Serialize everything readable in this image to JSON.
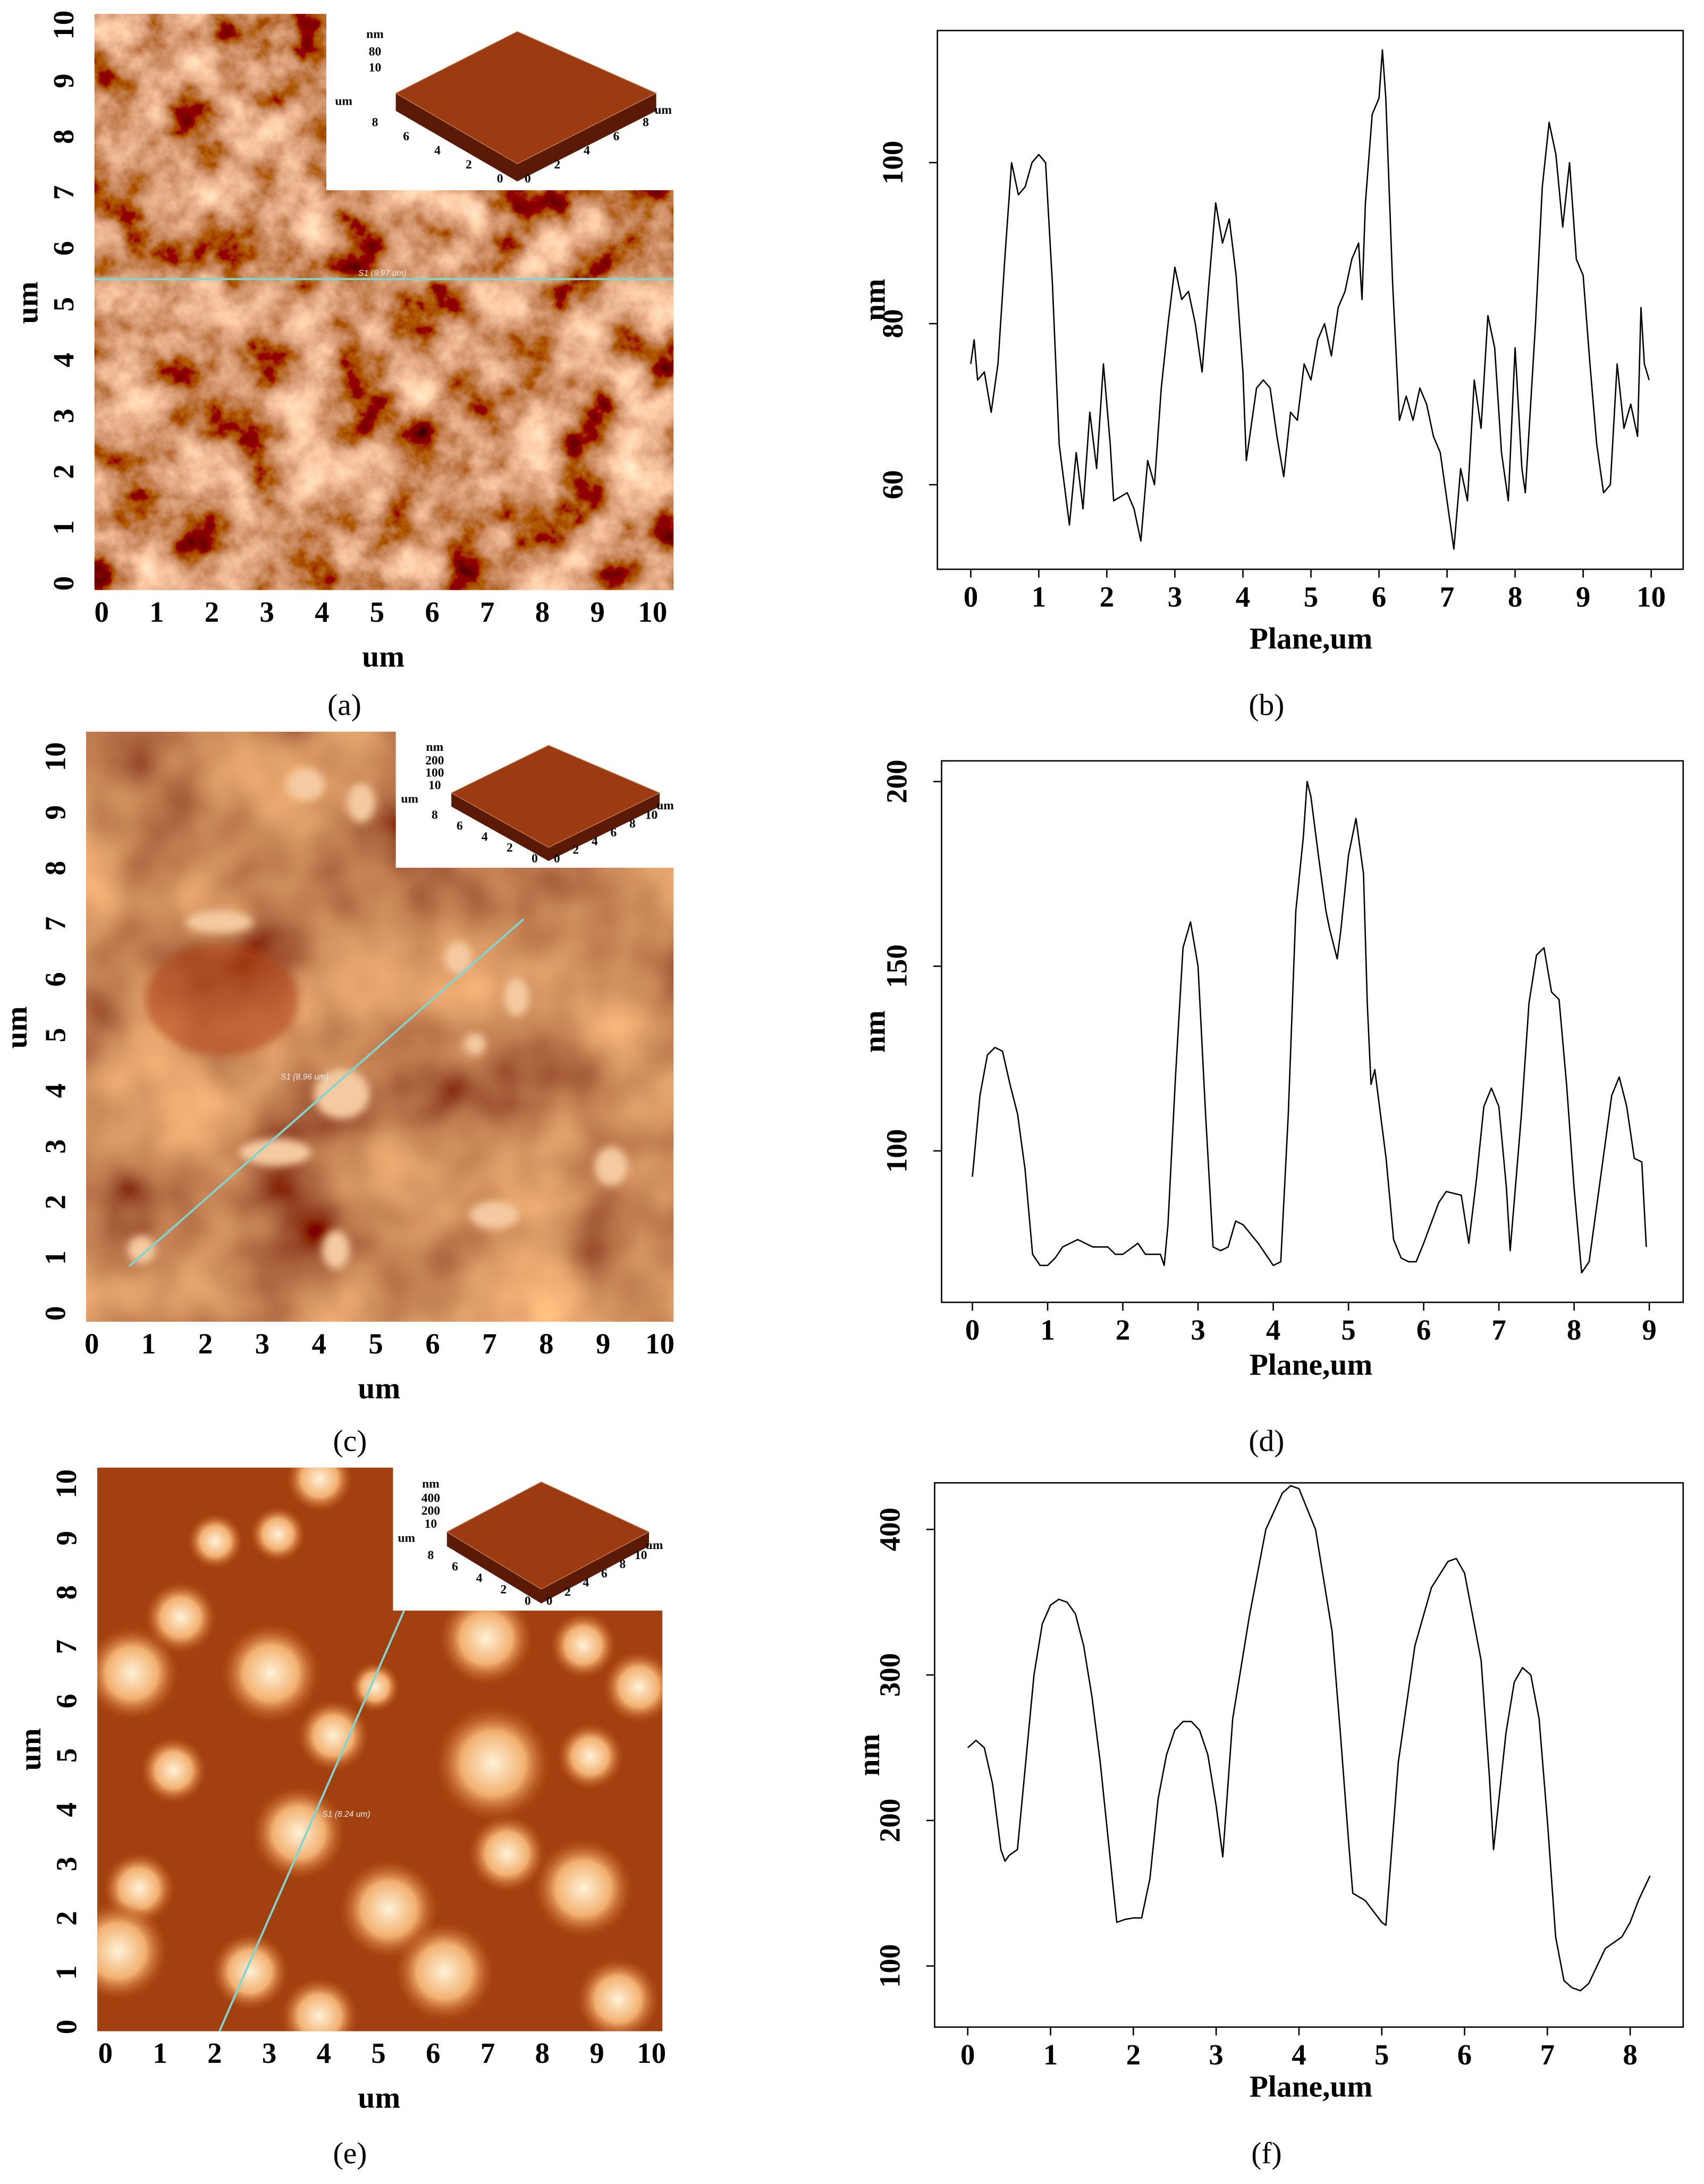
{
  "chart_data": [
    {
      "type": "image",
      "xlabel": "um",
      "ylabel": "um",
      "xlim": [
        -0.13,
        10.38
      ],
      "ylim": [
        -0.12,
        10.2
      ],
      "xticks": [
        0,
        1,
        2,
        3,
        4,
        5,
        6,
        7,
        8,
        9,
        10
      ],
      "yticks": [
        0,
        1,
        2,
        3,
        4,
        5,
        6,
        7,
        8,
        9,
        10
      ],
      "scan_label": "S1 (9.97 um)",
      "inset": {
        "zlabel": "nm",
        "zticks": [
          80,
          10
        ],
        "left_label": "um",
        "left_ticks": [
          8,
          6,
          4,
          2,
          0
        ],
        "right_ticks": [
          0,
          2,
          4,
          6,
          8
        ],
        "right_label": "um"
      },
      "caption": "(a)"
    },
    {
      "type": "line",
      "xlabel": "Plane,um",
      "ylabel": "nm",
      "xlim": [
        -0.49,
        10.47
      ],
      "ylim": [
        49.5,
        116.4
      ],
      "xticks": [
        0,
        1,
        2,
        3,
        4,
        5,
        6,
        7,
        8,
        9,
        10
      ],
      "yticks": [
        60,
        80,
        100
      ],
      "color": "#000000",
      "x": [
        0,
        0.05,
        0.1,
        0.2,
        0.3,
        0.4,
        0.5,
        0.6,
        0.7,
        0.8,
        0.9,
        1.0,
        1.1,
        1.2,
        1.3,
        1.45,
        1.55,
        1.65,
        1.75,
        1.85,
        1.95,
        2.05,
        2.1,
        2.3,
        2.4,
        2.5,
        2.6,
        2.7,
        2.8,
        2.9,
        3.0,
        3.1,
        3.2,
        3.3,
        3.4,
        3.5,
        3.6,
        3.7,
        3.8,
        3.9,
        4.0,
        4.05,
        4.2,
        4.3,
        4.4,
        4.5,
        4.6,
        4.7,
        4.8,
        4.9,
        5.0,
        5.1,
        5.2,
        5.3,
        5.4,
        5.5,
        5.6,
        5.7,
        5.75,
        5.8,
        5.9,
        6.0,
        6.05,
        6.1,
        6.2,
        6.3,
        6.4,
        6.5,
        6.6,
        6.7,
        6.8,
        6.9,
        7.0,
        7.1,
        7.2,
        7.3,
        7.4,
        7.5,
        7.6,
        7.7,
        7.8,
        7.9,
        8.0,
        8.1,
        8.15,
        8.3,
        8.4,
        8.5,
        8.6,
        8.7,
        8.8,
        8.9,
        9.0,
        9.1,
        9.2,
        9.3,
        9.4,
        9.5,
        9.6,
        9.7,
        9.8,
        9.85,
        9.9,
        9.97
      ],
      "values": [
        75,
        78,
        73,
        74,
        69,
        75,
        88,
        100,
        96,
        97,
        100,
        101,
        100,
        85,
        65,
        55,
        64,
        57,
        69,
        62,
        75,
        65,
        58,
        59,
        57,
        53,
        63,
        60,
        72,
        80,
        87,
        83,
        84,
        80,
        74,
        85,
        95,
        90,
        93,
        86,
        74,
        63,
        72,
        73,
        72,
        66,
        61,
        69,
        68,
        75,
        73,
        78,
        80,
        76,
        82,
        84,
        88,
        90,
        83,
        95,
        106,
        108,
        114,
        108,
        85,
        68,
        71,
        68,
        72,
        70,
        66,
        64,
        58,
        52,
        62,
        58,
        73,
        67,
        81,
        77,
        64,
        58,
        77,
        62,
        59,
        80,
        97,
        105,
        101,
        92,
        100,
        88,
        86,
        75,
        65,
        59,
        60,
        75,
        67,
        70,
        66,
        82,
        75,
        73
      ],
      "caption": "(b)"
    },
    {
      "type": "image",
      "xlabel": "um",
      "ylabel": "um",
      "xlim": [
        -0.1,
        10.24
      ],
      "ylim": [
        -0.15,
        10.45
      ],
      "xticks": [
        0,
        1,
        2,
        3,
        4,
        5,
        6,
        7,
        8,
        9,
        10
      ],
      "yticks": [
        0,
        1,
        2,
        3,
        4,
        5,
        6,
        7,
        8,
        9,
        10
      ],
      "scan_label": "S1 (8.96 um)",
      "inset": {
        "zlabel": "nm",
        "zticks": [
          200,
          100,
          10
        ],
        "left_label": "um",
        "left_ticks": [
          8,
          6,
          4,
          2,
          0
        ],
        "right_ticks": [
          0,
          2,
          4,
          6,
          8,
          10
        ],
        "right_label": "um"
      },
      "caption": "(c)"
    },
    {
      "type": "line",
      "xlabel": "Plane,um",
      "ylabel": "nm",
      "xlim": [
        -0.41,
        9.45
      ],
      "ylim": [
        59,
        205.6
      ],
      "xticks": [
        0,
        1,
        2,
        3,
        4,
        5,
        6,
        7,
        8,
        9
      ],
      "yticks": [
        100,
        150,
        200
      ],
      "color": "#000000",
      "x": [
        0,
        0.1,
        0.2,
        0.3,
        0.4,
        0.5,
        0.6,
        0.7,
        0.8,
        0.9,
        1.0,
        1.1,
        1.2,
        1.4,
        1.6,
        1.8,
        1.9,
        2.0,
        2.2,
        2.3,
        2.5,
        2.55,
        2.6,
        2.7,
        2.8,
        2.9,
        3.0,
        3.1,
        3.2,
        3.3,
        3.4,
        3.5,
        3.6,
        3.8,
        4.0,
        4.1,
        4.2,
        4.3,
        4.4,
        4.45,
        4.5,
        4.6,
        4.7,
        4.75,
        4.85,
        4.9,
        5.0,
        5.1,
        5.2,
        5.25,
        5.3,
        5.35,
        5.4,
        5.5,
        5.6,
        5.7,
        5.8,
        5.9,
        6.0,
        6.2,
        6.3,
        6.5,
        6.6,
        6.7,
        6.8,
        6.9,
        7.0,
        7.1,
        7.15,
        7.3,
        7.4,
        7.5,
        7.6,
        7.7,
        7.8,
        7.9,
        8.0,
        8.1,
        8.2,
        8.3,
        8.5,
        8.6,
        8.7,
        8.8,
        8.9,
        8.96
      ],
      "values": [
        93,
        115,
        126,
        128,
        127,
        118,
        110,
        95,
        72,
        69,
        69,
        71,
        74,
        76,
        74,
        74,
        72,
        72,
        75,
        72,
        72,
        69,
        80,
        120,
        155,
        162,
        150,
        110,
        74,
        73,
        74,
        81,
        80,
        75,
        69,
        70,
        110,
        165,
        185,
        200,
        196,
        180,
        165,
        160,
        152,
        160,
        180,
        190,
        175,
        140,
        118,
        122,
        114,
        98,
        76,
        71,
        70,
        70,
        75,
        86,
        89,
        88,
        75,
        92,
        112,
        117,
        112,
        90,
        73,
        110,
        140,
        153,
        155,
        143,
        141,
        118,
        90,
        67,
        70,
        85,
        115,
        120,
        112,
        98,
        97,
        74
      ],
      "caption": "(d)"
    },
    {
      "type": "image",
      "xlabel": "um",
      "ylabel": "um",
      "xlim": [
        -0.15,
        10.2
      ],
      "ylim": [
        -0.08,
        10.3
      ],
      "xticks": [
        0,
        1,
        2,
        3,
        4,
        5,
        6,
        7,
        8,
        9,
        10
      ],
      "yticks": [
        0,
        1,
        2,
        3,
        4,
        5,
        6,
        7,
        8,
        9,
        10
      ],
      "scan_label": "S1 (8.24 um)",
      "inset": {
        "zlabel": "nm",
        "zticks": [
          400,
          200,
          10
        ],
        "left_label": "um",
        "left_ticks": [
          8,
          6,
          4,
          2,
          0
        ],
        "right_ticks": [
          0,
          2,
          4,
          6,
          8,
          10
        ],
        "right_label": "um"
      },
      "caption": "(e)"
    },
    {
      "type": "line",
      "xlabel": "Plane,um",
      "ylabel": "nm",
      "xlim": [
        -0.4,
        8.64
      ],
      "ylim": [
        58,
        432
      ],
      "xticks": [
        0,
        1,
        2,
        3,
        4,
        5,
        6,
        7,
        8
      ],
      "yticks": [
        100,
        200,
        300,
        400
      ],
      "color": "#000000",
      "x": [
        0,
        0.1,
        0.2,
        0.3,
        0.4,
        0.45,
        0.5,
        0.6,
        0.7,
        0.8,
        0.9,
        1.0,
        1.1,
        1.2,
        1.3,
        1.4,
        1.5,
        1.6,
        1.7,
        1.8,
        1.9,
        2.0,
        2.1,
        2.2,
        2.3,
        2.4,
        2.5,
        2.6,
        2.7,
        2.8,
        2.9,
        3.0,
        3.08,
        3.2,
        3.4,
        3.6,
        3.8,
        3.9,
        4.0,
        4.2,
        4.4,
        4.5,
        4.6,
        4.65,
        4.8,
        5.0,
        5.05,
        5.2,
        5.4,
        5.6,
        5.8,
        5.9,
        6.0,
        6.2,
        6.3,
        6.35,
        6.5,
        6.6,
        6.7,
        6.8,
        6.9,
        7.0,
        7.1,
        7.2,
        7.3,
        7.4,
        7.5,
        7.6,
        7.7,
        7.9,
        8.0,
        8.1,
        8.24
      ],
      "values": [
        250,
        255,
        250,
        225,
        180,
        172,
        176,
        180,
        240,
        300,
        335,
        348,
        352,
        350,
        342,
        320,
        285,
        240,
        185,
        130,
        132,
        133,
        133,
        160,
        215,
        245,
        262,
        268,
        268,
        262,
        245,
        210,
        175,
        270,
        340,
        400,
        425,
        430,
        428,
        400,
        330,
        260,
        185,
        150,
        145,
        130,
        128,
        240,
        320,
        360,
        378,
        380,
        370,
        310,
        230,
        180,
        260,
        295,
        305,
        300,
        270,
        200,
        120,
        90,
        85,
        83,
        88,
        100,
        112,
        120,
        130,
        145,
        162
      ],
      "caption": "(f)"
    }
  ]
}
